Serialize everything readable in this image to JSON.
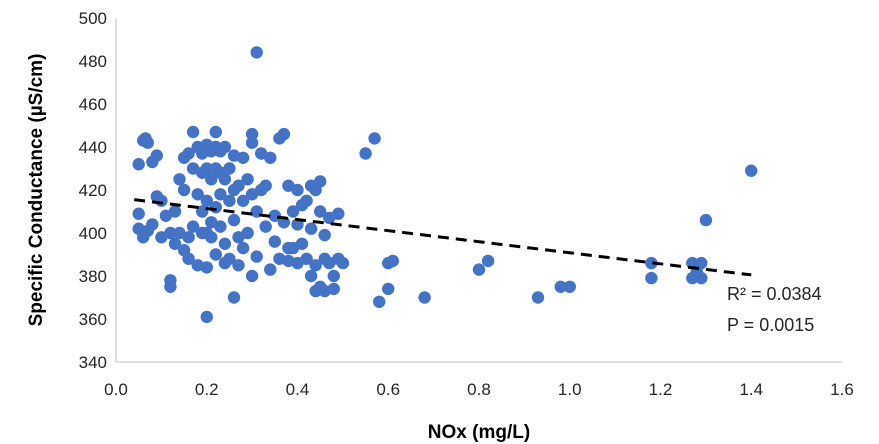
{
  "chart_data": {
    "type": "scatter",
    "title": "",
    "xlabel": "NOx (mg/L)",
    "ylabel": "Specific Conductance (µS/cm)",
    "xlim": [
      0,
      1.6
    ],
    "ylim": [
      340,
      500
    ],
    "x_ticks": [
      "0.0",
      "0.2",
      "0.4",
      "0.6",
      "0.8",
      "1.0",
      "1.2",
      "1.4",
      "1.6"
    ],
    "y_ticks": [
      "340",
      "360",
      "380",
      "400",
      "420",
      "440",
      "460",
      "480",
      "500"
    ],
    "grid": false,
    "colors": {
      "points": "#4472C4",
      "trendline": "#000000"
    },
    "trendline": {
      "style": "dashed",
      "x": [
        0.04,
        1.4
      ],
      "y": [
        415.5,
        380.5
      ]
    },
    "annotations": {
      "r2": "R² = 0.0384",
      "p": "P = 0.0015"
    },
    "points": [
      [
        0.05,
        432
      ],
      [
        0.06,
        443
      ],
      [
        0.065,
        444
      ],
      [
        0.07,
        442
      ],
      [
        0.08,
        433
      ],
      [
        0.09,
        436
      ],
      [
        0.05,
        409
      ],
      [
        0.05,
        402
      ],
      [
        0.06,
        398
      ],
      [
        0.07,
        401
      ],
      [
        0.08,
        404
      ],
      [
        0.09,
        417
      ],
      [
        0.1,
        415
      ],
      [
        0.1,
        398
      ],
      [
        0.11,
        408
      ],
      [
        0.12,
        400
      ],
      [
        0.12,
        378
      ],
      [
        0.12,
        375
      ],
      [
        0.13,
        410
      ],
      [
        0.13,
        395
      ],
      [
        0.14,
        425
      ],
      [
        0.14,
        400
      ],
      [
        0.15,
        392
      ],
      [
        0.15,
        420
      ],
      [
        0.15,
        435
      ],
      [
        0.16,
        437
      ],
      [
        0.16,
        388
      ],
      [
        0.16,
        398
      ],
      [
        0.17,
        447
      ],
      [
        0.17,
        430
      ],
      [
        0.17,
        403
      ],
      [
        0.18,
        440
      ],
      [
        0.18,
        418
      ],
      [
        0.18,
        385
      ],
      [
        0.19,
        437
      ],
      [
        0.19,
        428
      ],
      [
        0.19,
        410
      ],
      [
        0.19,
        400
      ],
      [
        0.2,
        441
      ],
      [
        0.2,
        430
      ],
      [
        0.2,
        415
      ],
      [
        0.2,
        400
      ],
      [
        0.2,
        384
      ],
      [
        0.2,
        361
      ],
      [
        0.21,
        438
      ],
      [
        0.21,
        425
      ],
      [
        0.21,
        405
      ],
      [
        0.21,
        398
      ],
      [
        0.22,
        447
      ],
      [
        0.22,
        440
      ],
      [
        0.22,
        430
      ],
      [
        0.22,
        412
      ],
      [
        0.22,
        390
      ],
      [
        0.23,
        438
      ],
      [
        0.23,
        428
      ],
      [
        0.23,
        418
      ],
      [
        0.23,
        403
      ],
      [
        0.24,
        440
      ],
      [
        0.24,
        425
      ],
      [
        0.24,
        395
      ],
      [
        0.24,
        386
      ],
      [
        0.25,
        430
      ],
      [
        0.25,
        415
      ],
      [
        0.25,
        388
      ],
      [
        0.26,
        436
      ],
      [
        0.26,
        420
      ],
      [
        0.26,
        406
      ],
      [
        0.26,
        370
      ],
      [
        0.27,
        422
      ],
      [
        0.27,
        398
      ],
      [
        0.27,
        385
      ],
      [
        0.28,
        435
      ],
      [
        0.28,
        415
      ],
      [
        0.28,
        393
      ],
      [
        0.29,
        425
      ],
      [
        0.29,
        400
      ],
      [
        0.3,
        446
      ],
      [
        0.3,
        442
      ],
      [
        0.3,
        418
      ],
      [
        0.3,
        380
      ],
      [
        0.31,
        484
      ],
      [
        0.31,
        410
      ],
      [
        0.31,
        389
      ],
      [
        0.32,
        437
      ],
      [
        0.32,
        420
      ],
      [
        0.33,
        422
      ],
      [
        0.33,
        403
      ],
      [
        0.34,
        435
      ],
      [
        0.34,
        383
      ],
      [
        0.35,
        408
      ],
      [
        0.35,
        396
      ],
      [
        0.36,
        444
      ],
      [
        0.36,
        388
      ],
      [
        0.37,
        446
      ],
      [
        0.37,
        405
      ],
      [
        0.38,
        422
      ],
      [
        0.38,
        393
      ],
      [
        0.38,
        387
      ],
      [
        0.39,
        410
      ],
      [
        0.39,
        393
      ],
      [
        0.4,
        420
      ],
      [
        0.4,
        404
      ],
      [
        0.4,
        386
      ],
      [
        0.41,
        413
      ],
      [
        0.41,
        395
      ],
      [
        0.42,
        415
      ],
      [
        0.42,
        388
      ],
      [
        0.43,
        422
      ],
      [
        0.43,
        402
      ],
      [
        0.43,
        380
      ],
      [
        0.44,
        420
      ],
      [
        0.44,
        385
      ],
      [
        0.44,
        373
      ],
      [
        0.45,
        424
      ],
      [
        0.45,
        410
      ],
      [
        0.45,
        375
      ],
      [
        0.46,
        399
      ],
      [
        0.46,
        388
      ],
      [
        0.46,
        373
      ],
      [
        0.47,
        407
      ],
      [
        0.47,
        386
      ],
      [
        0.48,
        380
      ],
      [
        0.48,
        374
      ],
      [
        0.49,
        409
      ],
      [
        0.49,
        388
      ],
      [
        0.5,
        386
      ],
      [
        0.55,
        437
      ],
      [
        0.57,
        444
      ],
      [
        0.58,
        368
      ],
      [
        0.6,
        386
      ],
      [
        0.6,
        374
      ],
      [
        0.61,
        387
      ],
      [
        0.68,
        370
      ],
      [
        0.8,
        383
      ],
      [
        0.82,
        387
      ],
      [
        0.93,
        370
      ],
      [
        0.98,
        375
      ],
      [
        1.0,
        375
      ],
      [
        1.18,
        386
      ],
      [
        1.18,
        379
      ],
      [
        1.27,
        386
      ],
      [
        1.27,
        379
      ],
      [
        1.28,
        382
      ],
      [
        1.29,
        386
      ],
      [
        1.29,
        379
      ],
      [
        1.3,
        406
      ],
      [
        1.4,
        429
      ]
    ]
  }
}
